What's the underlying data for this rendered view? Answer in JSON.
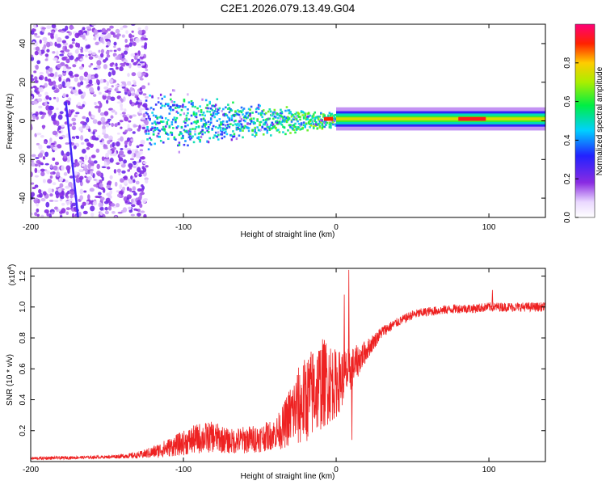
{
  "figure_title": "C2E1.2026.079.13.49.G04",
  "chart_data": [
    {
      "type": "heatmap",
      "title": "C2E1.2026.079.13.49.G04",
      "xlabel": "Height of straight line (km)",
      "ylabel": "Frequency (Hz)",
      "xlim": [
        -200,
        137
      ],
      "ylim": [
        -50,
        50
      ],
      "xticks": [
        -200,
        -100,
        0,
        100
      ],
      "yticks": [
        -40,
        -20,
        0,
        20,
        40
      ],
      "colorbar": {
        "label": "Normalized spectral amplitude",
        "range": [
          0,
          1
        ],
        "ticks": [
          0.0,
          0.2,
          0.4,
          0.6,
          0.8
        ],
        "colormap": "rainbow (white-violet-blue-cyan-green-yellow-red-magenta)"
      },
      "features": [
        {
          "description": "dense scatter of noise",
          "x_range": [
            -200,
            -125
          ],
          "freq_range": [
            -50,
            50
          ]
        },
        {
          "description": "spreading band narrowing with height",
          "x_range": [
            -125,
            0
          ],
          "freq_half_width": [
            8,
            2
          ]
        },
        {
          "description": "narrow carrier band near 0 Hz",
          "x_range": [
            0,
            137
          ],
          "freq_half_width": 2
        },
        {
          "description": "peak amplitude segment",
          "x_range": [
            80,
            98
          ],
          "freq": 1
        },
        {
          "description": "diagonal streak",
          "points": [
            [
              -177,
              10
            ],
            [
              -169,
              -50
            ]
          ]
        }
      ],
      "colorbar_ticks": [
        0.0,
        0.2,
        0.4,
        0.6,
        0.8
      ]
    },
    {
      "type": "line",
      "xlabel": "Height of straight line (km)",
      "ylabel": "SNR (10 * v/v)",
      "scale_label": "(x10",
      "scale_exp": "4",
      "scale_close": ")",
      "xlim": [
        -200,
        137
      ],
      "ylim": [
        0,
        1.25
      ],
      "xticks": [
        -200,
        -100,
        0,
        100
      ],
      "yticks": [
        0.2,
        0.4,
        0.6,
        0.8,
        1.0,
        1.2
      ],
      "color": "#ee2222",
      "series": [
        {
          "name": "SNR",
          "x": [
            -200,
            -150,
            -130,
            -120,
            -110,
            -100,
            -90,
            -80,
            -70,
            -60,
            -50,
            -40,
            -35,
            -30,
            -25,
            -20,
            -15,
            -10,
            -5,
            0,
            5,
            10,
            15,
            20,
            25,
            30,
            40,
            50,
            60,
            70,
            80,
            90,
            100,
            110,
            120,
            137
          ],
          "mean": [
            0.02,
            0.03,
            0.04,
            0.06,
            0.09,
            0.12,
            0.15,
            0.16,
            0.13,
            0.14,
            0.15,
            0.18,
            0.22,
            0.3,
            0.35,
            0.4,
            0.45,
            0.5,
            0.52,
            0.5,
            0.55,
            0.6,
            0.66,
            0.72,
            0.78,
            0.84,
            0.9,
            0.95,
            0.97,
            0.98,
            0.99,
            0.99,
            1.0,
            1.0,
            1.0,
            1.0
          ],
          "spread": [
            0.01,
            0.01,
            0.02,
            0.04,
            0.06,
            0.08,
            0.1,
            0.1,
            0.08,
            0.09,
            0.09,
            0.1,
            0.14,
            0.2,
            0.26,
            0.28,
            0.3,
            0.3,
            0.28,
            0.22,
            0.18,
            0.14,
            0.1,
            0.07,
            0.05,
            0.04,
            0.03,
            0.03,
            0.03,
            0.03,
            0.03,
            0.03,
            0.03,
            0.03,
            0.03,
            0.03
          ],
          "spikes": [
            {
              "x": 8,
              "y": 1.24
            },
            {
              "x": 5,
              "y": 1.08
            },
            {
              "x": 102,
              "y": 1.11
            },
            {
              "x": 10,
              "y": 0.14
            }
          ]
        }
      ]
    }
  ]
}
